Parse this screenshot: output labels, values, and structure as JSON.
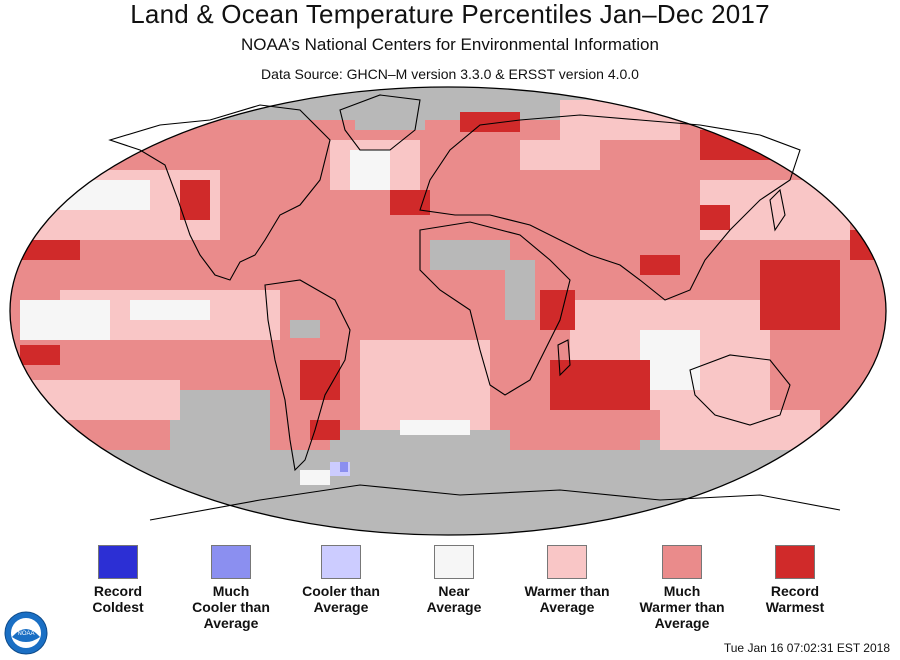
{
  "header": {
    "title": "Land & Ocean Temperature Percentiles Jan–Dec 2017",
    "subtitle": "NOAA’s National Centers for Environmental Information",
    "source": "Data Source: GHCN–M version 3.3.0 & ERSST version 4.0.0"
  },
  "legend": [
    {
      "label": "Record\nColdest",
      "color": "#2c2fd4"
    },
    {
      "label": "Much\nCooler than\nAverage",
      "color": "#8b8ff0"
    },
    {
      "label": "Cooler than\nAverage",
      "color": "#ccccff"
    },
    {
      "label": "Near\nAverage",
      "color": "#f6f6f6"
    },
    {
      "label": "Warmer than\nAverage",
      "color": "#f9c6c6"
    },
    {
      "label": "Much\nWarmer than\nAverage",
      "color": "#ea8b8b"
    },
    {
      "label": "Record\nWarmest",
      "color": "#d02a2a"
    }
  ],
  "map": {
    "no_data_color": "#b8b8b8",
    "land_outline_color": "#000000",
    "projection": "Robinson"
  },
  "timestamp": "Tue Jan 16 07:02:31 EST 2018",
  "logo": {
    "icon": "noaa-logo-icon",
    "text": "NOAA"
  }
}
